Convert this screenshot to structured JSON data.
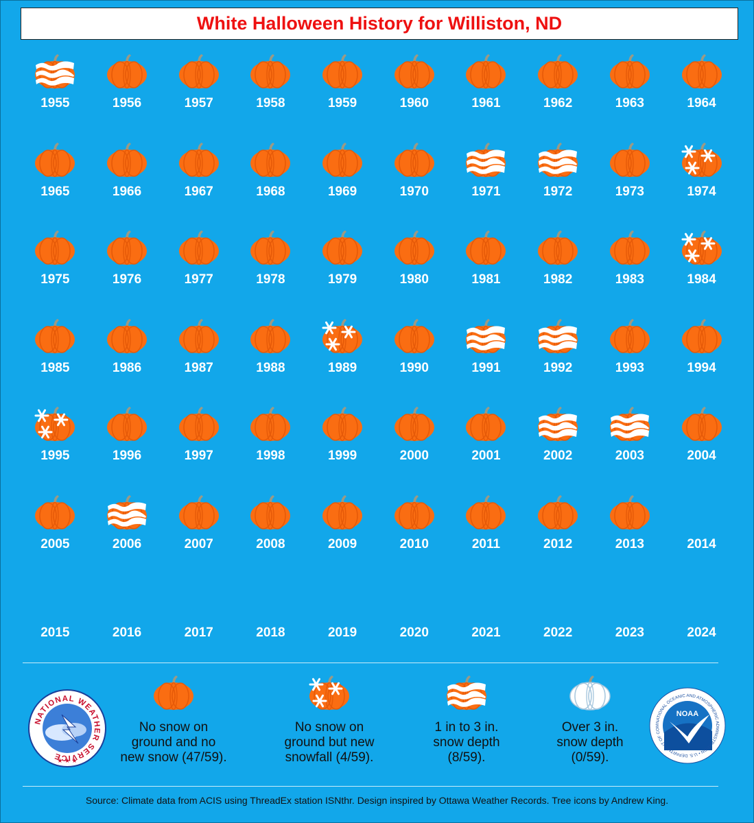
{
  "title": "White Halloween History for Williston, ND",
  "colors": {
    "background": "#12a7ea",
    "pumpkin": "#fa6d12",
    "pumpkin_rib": "#e65a08",
    "stem": "#9a9a86",
    "snow": "#ffffff",
    "title_text": "#ee1111"
  },
  "rows": [
    [
      {
        "year": "1955",
        "category": "snow_depth"
      },
      {
        "year": "1956",
        "category": "none"
      },
      {
        "year": "1957",
        "category": "none"
      },
      {
        "year": "1958",
        "category": "none"
      },
      {
        "year": "1959",
        "category": "none"
      },
      {
        "year": "1960",
        "category": "none"
      },
      {
        "year": "1961",
        "category": "none"
      },
      {
        "year": "1962",
        "category": "none"
      },
      {
        "year": "1963",
        "category": "none"
      },
      {
        "year": "1964",
        "category": "none"
      }
    ],
    [
      {
        "year": "1965",
        "category": "none"
      },
      {
        "year": "1966",
        "category": "none"
      },
      {
        "year": "1967",
        "category": "none"
      },
      {
        "year": "1968",
        "category": "none"
      },
      {
        "year": "1969",
        "category": "none"
      },
      {
        "year": "1970",
        "category": "none"
      },
      {
        "year": "1971",
        "category": "snow_depth"
      },
      {
        "year": "1972",
        "category": "snow_depth"
      },
      {
        "year": "1973",
        "category": "none"
      },
      {
        "year": "1974",
        "category": "new_snowfall"
      }
    ],
    [
      {
        "year": "1975",
        "category": "none"
      },
      {
        "year": "1976",
        "category": "none"
      },
      {
        "year": "1977",
        "category": "none"
      },
      {
        "year": "1978",
        "category": "none"
      },
      {
        "year": "1979",
        "category": "none"
      },
      {
        "year": "1980",
        "category": "none"
      },
      {
        "year": "1981",
        "category": "none"
      },
      {
        "year": "1982",
        "category": "none"
      },
      {
        "year": "1983",
        "category": "none"
      },
      {
        "year": "1984",
        "category": "new_snowfall"
      }
    ],
    [
      {
        "year": "1985",
        "category": "none"
      },
      {
        "year": "1986",
        "category": "none"
      },
      {
        "year": "1987",
        "category": "none"
      },
      {
        "year": "1988",
        "category": "none"
      },
      {
        "year": "1989",
        "category": "new_snowfall"
      },
      {
        "year": "1990",
        "category": "none"
      },
      {
        "year": "1991",
        "category": "snow_depth"
      },
      {
        "year": "1992",
        "category": "snow_depth"
      },
      {
        "year": "1993",
        "category": "none"
      },
      {
        "year": "1994",
        "category": "none"
      }
    ],
    [
      {
        "year": "1995",
        "category": "new_snowfall"
      },
      {
        "year": "1996",
        "category": "none"
      },
      {
        "year": "1997",
        "category": "none"
      },
      {
        "year": "1998",
        "category": "none"
      },
      {
        "year": "1999",
        "category": "none"
      },
      {
        "year": "2000",
        "category": "none"
      },
      {
        "year": "2001",
        "category": "none"
      },
      {
        "year": "2002",
        "category": "snow_depth"
      },
      {
        "year": "2003",
        "category": "snow_depth"
      },
      {
        "year": "2004",
        "category": "none"
      }
    ],
    [
      {
        "year": "2005",
        "category": "none"
      },
      {
        "year": "2006",
        "category": "snow_depth"
      },
      {
        "year": "2007",
        "category": "none"
      },
      {
        "year": "2008",
        "category": "none"
      },
      {
        "year": "2009",
        "category": "none"
      },
      {
        "year": "2010",
        "category": "none"
      },
      {
        "year": "2011",
        "category": "none"
      },
      {
        "year": "2012",
        "category": "none"
      },
      {
        "year": "2013",
        "category": "none"
      },
      {
        "year": "2014",
        "category": "blank"
      }
    ],
    [
      {
        "year": "2015",
        "category": "blank"
      },
      {
        "year": "2016",
        "category": "blank"
      },
      {
        "year": "2017",
        "category": "blank"
      },
      {
        "year": "2018",
        "category": "blank"
      },
      {
        "year": "2019",
        "category": "blank"
      },
      {
        "year": "2020",
        "category": "blank"
      },
      {
        "year": "2021",
        "category": "blank"
      },
      {
        "year": "2022",
        "category": "blank"
      },
      {
        "year": "2023",
        "category": "blank"
      },
      {
        "year": "2024",
        "category": "blank"
      }
    ]
  ],
  "legend": [
    {
      "category": "none",
      "text": "No snow on\nground and no\nnew snow (47/59)."
    },
    {
      "category": "new_snowfall",
      "text": "No snow on\nground but new\nsnowfall (4/59)."
    },
    {
      "category": "snow_depth",
      "text": "1 in to 3 in.\nsnow depth\n(8/59)."
    },
    {
      "category": "deep_snow",
      "text": "Over 3 in.\nsnow depth\n(0/59)."
    }
  ],
  "logos": {
    "nws_text": "NATIONAL WEATHER SERVICE",
    "noaa_label": "NOAA",
    "noaa_ring_text": "NATIONAL OCEANIC AND ATMOSPHERIC ADMINISTRATION • U.S. DEPARTMENT OF COMMERCE"
  },
  "source": "Source: Climate data from ACIS using ThreadEx station ISNthr. Design inspired by Ottawa Weather Records. Tree icons by Andrew King."
}
